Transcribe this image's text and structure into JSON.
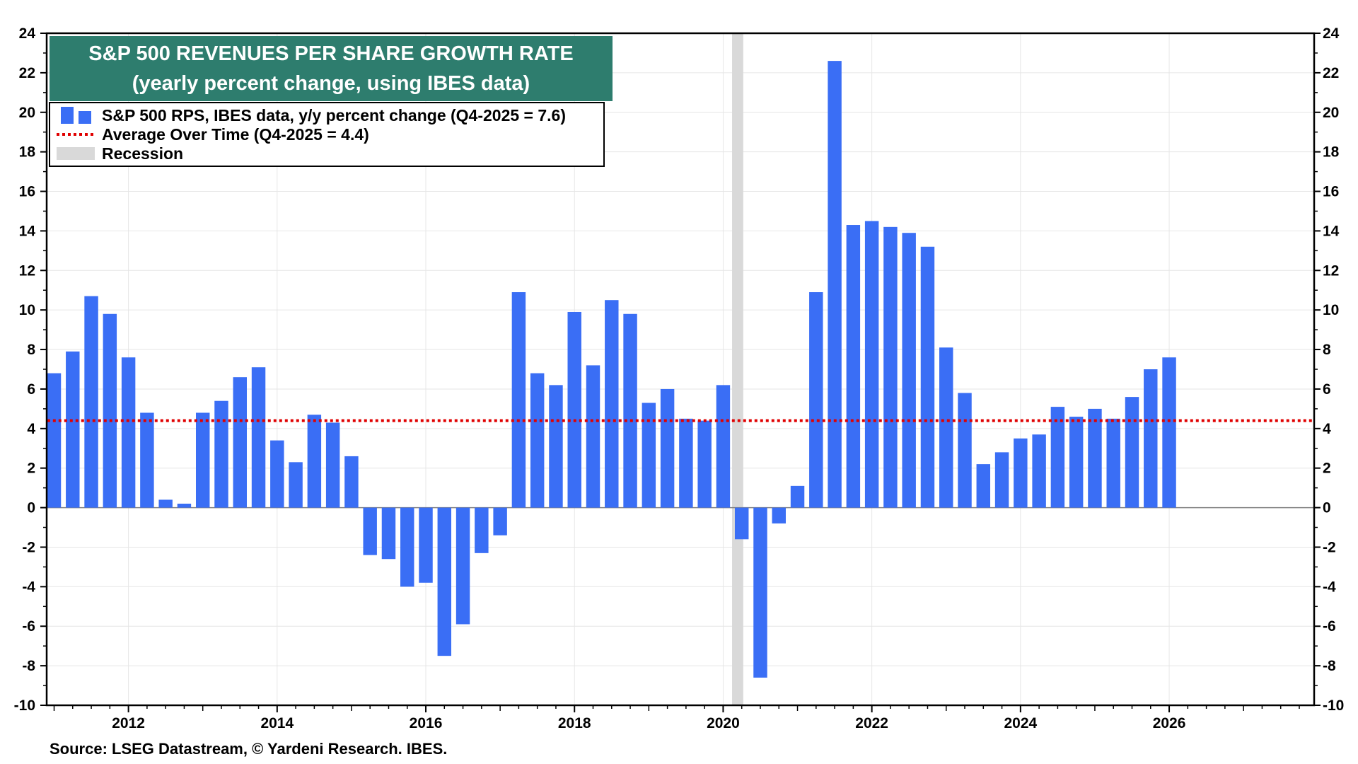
{
  "chart_data": {
    "type": "bar",
    "title": "S&P 500 REVENUES PER SHARE GROWTH RATE",
    "subtitle": "(yearly percent change, using IBES data)",
    "source": "Source: LSEG Datastream, © Yardeni Research. IBES.",
    "xlabel": "",
    "ylabel": "",
    "ylim": [
      -10,
      24
    ],
    "xlim": [
      2010.9,
      2027.95
    ],
    "y_ticks": [
      24,
      22,
      20,
      18,
      16,
      14,
      12,
      10,
      8,
      6,
      4,
      2,
      0,
      -2,
      -4,
      -6,
      -8,
      -10
    ],
    "x_ticks": [
      2012,
      2014,
      2016,
      2018,
      2020,
      2022,
      2024,
      2026
    ],
    "grid": true,
    "legend_position": "top-left",
    "colors": {
      "bar": "#3a6ef5",
      "average": "#e00000",
      "recession": "#d9d9d9",
      "title_bg": "#2e7d6e",
      "zero_line": "#808080"
    },
    "legend": [
      {
        "kind": "bar",
        "label": "S&P 500 RPS, IBES data, y/y percent change (Q4-2025 = 7.6)"
      },
      {
        "kind": "dotted-line",
        "label": "Average Over Time (Q4-2025 = 4.4)"
      },
      {
        "kind": "band",
        "label": "Recession"
      }
    ],
    "average": 4.4,
    "recession": {
      "start": 2020.12,
      "end": 2020.27
    },
    "series": [
      {
        "name": "S&P 500 RPS, IBES data, y/y percent change",
        "x": [
          2011.0,
          2011.25,
          2011.5,
          2011.75,
          2012.0,
          2012.25,
          2012.5,
          2012.75,
          2013.0,
          2013.25,
          2013.5,
          2013.75,
          2014.0,
          2014.25,
          2014.5,
          2014.75,
          2015.0,
          2015.25,
          2015.5,
          2015.75,
          2016.0,
          2016.25,
          2016.5,
          2016.75,
          2017.0,
          2017.25,
          2017.5,
          2017.75,
          2018.0,
          2018.25,
          2018.5,
          2018.75,
          2019.0,
          2019.25,
          2019.5,
          2019.75,
          2020.0,
          2020.25,
          2020.5,
          2020.75,
          2021.0,
          2021.25,
          2021.5,
          2021.75,
          2022.0,
          2022.25,
          2022.5,
          2022.75,
          2023.0,
          2023.25,
          2023.5,
          2023.75,
          2024.0,
          2024.25,
          2024.5,
          2024.75,
          2025.0,
          2025.25,
          2025.5,
          2025.75,
          2026.0
        ],
        "values": [
          6.8,
          7.9,
          10.7,
          9.8,
          7.6,
          4.8,
          0.4,
          0.2,
          4.8,
          5.4,
          6.6,
          7.1,
          3.4,
          2.3,
          4.7,
          4.3,
          2.6,
          -2.4,
          -2.6,
          -4.0,
          -3.8,
          -7.5,
          -5.9,
          -2.3,
          -1.4,
          10.9,
          6.8,
          6.2,
          9.9,
          7.2,
          10.5,
          9.8,
          5.3,
          6.0,
          4.5,
          4.4,
          6.2,
          -1.6,
          -8.6,
          -0.8,
          1.1,
          10.9,
          22.6,
          14.3,
          14.5,
          14.2,
          13.9,
          13.2,
          8.1,
          5.8,
          2.2,
          2.8,
          3.5,
          3.7,
          5.1,
          4.6,
          5.0,
          4.5,
          5.6,
          7.0,
          7.6
        ]
      }
    ]
  }
}
